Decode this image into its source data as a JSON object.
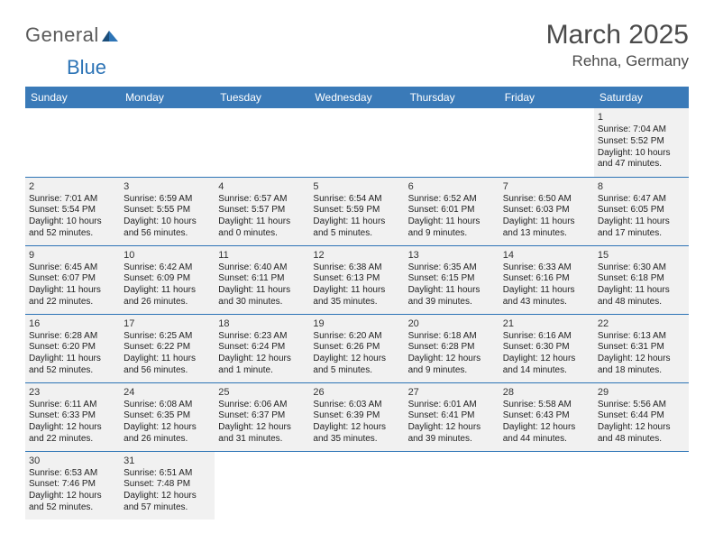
{
  "logo": {
    "general": "General",
    "blue": "Blue"
  },
  "title": "March 2025",
  "location": "Rehna, Germany",
  "colors": {
    "header_bg": "#3a7ab8",
    "header_fg": "#ffffff",
    "rule": "#2d74b6",
    "cell_bg": "#f1f1f1",
    "text": "#222222",
    "logo_gray": "#5a5a5a",
    "logo_blue": "#2d74b6"
  },
  "weekdays": [
    "Sunday",
    "Monday",
    "Tuesday",
    "Wednesday",
    "Thursday",
    "Friday",
    "Saturday"
  ],
  "grid": [
    [
      null,
      null,
      null,
      null,
      null,
      null,
      {
        "n": "1",
        "sr": "7:04 AM",
        "ss": "5:52 PM",
        "dl": "10 hours and 47 minutes."
      }
    ],
    [
      {
        "n": "2",
        "sr": "7:01 AM",
        "ss": "5:54 PM",
        "dl": "10 hours and 52 minutes."
      },
      {
        "n": "3",
        "sr": "6:59 AM",
        "ss": "5:55 PM",
        "dl": "10 hours and 56 minutes."
      },
      {
        "n": "4",
        "sr": "6:57 AM",
        "ss": "5:57 PM",
        "dl": "11 hours and 0 minutes."
      },
      {
        "n": "5",
        "sr": "6:54 AM",
        "ss": "5:59 PM",
        "dl": "11 hours and 5 minutes."
      },
      {
        "n": "6",
        "sr": "6:52 AM",
        "ss": "6:01 PM",
        "dl": "11 hours and 9 minutes."
      },
      {
        "n": "7",
        "sr": "6:50 AM",
        "ss": "6:03 PM",
        "dl": "11 hours and 13 minutes."
      },
      {
        "n": "8",
        "sr": "6:47 AM",
        "ss": "6:05 PM",
        "dl": "11 hours and 17 minutes."
      }
    ],
    [
      {
        "n": "9",
        "sr": "6:45 AM",
        "ss": "6:07 PM",
        "dl": "11 hours and 22 minutes."
      },
      {
        "n": "10",
        "sr": "6:42 AM",
        "ss": "6:09 PM",
        "dl": "11 hours and 26 minutes."
      },
      {
        "n": "11",
        "sr": "6:40 AM",
        "ss": "6:11 PM",
        "dl": "11 hours and 30 minutes."
      },
      {
        "n": "12",
        "sr": "6:38 AM",
        "ss": "6:13 PM",
        "dl": "11 hours and 35 minutes."
      },
      {
        "n": "13",
        "sr": "6:35 AM",
        "ss": "6:15 PM",
        "dl": "11 hours and 39 minutes."
      },
      {
        "n": "14",
        "sr": "6:33 AM",
        "ss": "6:16 PM",
        "dl": "11 hours and 43 minutes."
      },
      {
        "n": "15",
        "sr": "6:30 AM",
        "ss": "6:18 PM",
        "dl": "11 hours and 48 minutes."
      }
    ],
    [
      {
        "n": "16",
        "sr": "6:28 AM",
        "ss": "6:20 PM",
        "dl": "11 hours and 52 minutes."
      },
      {
        "n": "17",
        "sr": "6:25 AM",
        "ss": "6:22 PM",
        "dl": "11 hours and 56 minutes."
      },
      {
        "n": "18",
        "sr": "6:23 AM",
        "ss": "6:24 PM",
        "dl": "12 hours and 1 minute."
      },
      {
        "n": "19",
        "sr": "6:20 AM",
        "ss": "6:26 PM",
        "dl": "12 hours and 5 minutes."
      },
      {
        "n": "20",
        "sr": "6:18 AM",
        "ss": "6:28 PM",
        "dl": "12 hours and 9 minutes."
      },
      {
        "n": "21",
        "sr": "6:16 AM",
        "ss": "6:30 PM",
        "dl": "12 hours and 14 minutes."
      },
      {
        "n": "22",
        "sr": "6:13 AM",
        "ss": "6:31 PM",
        "dl": "12 hours and 18 minutes."
      }
    ],
    [
      {
        "n": "23",
        "sr": "6:11 AM",
        "ss": "6:33 PM",
        "dl": "12 hours and 22 minutes."
      },
      {
        "n": "24",
        "sr": "6:08 AM",
        "ss": "6:35 PM",
        "dl": "12 hours and 26 minutes."
      },
      {
        "n": "25",
        "sr": "6:06 AM",
        "ss": "6:37 PM",
        "dl": "12 hours and 31 minutes."
      },
      {
        "n": "26",
        "sr": "6:03 AM",
        "ss": "6:39 PM",
        "dl": "12 hours and 35 minutes."
      },
      {
        "n": "27",
        "sr": "6:01 AM",
        "ss": "6:41 PM",
        "dl": "12 hours and 39 minutes."
      },
      {
        "n": "28",
        "sr": "5:58 AM",
        "ss": "6:43 PM",
        "dl": "12 hours and 44 minutes."
      },
      {
        "n": "29",
        "sr": "5:56 AM",
        "ss": "6:44 PM",
        "dl": "12 hours and 48 minutes."
      }
    ],
    [
      {
        "n": "30",
        "sr": "6:53 AM",
        "ss": "7:46 PM",
        "dl": "12 hours and 52 minutes."
      },
      {
        "n": "31",
        "sr": "6:51 AM",
        "ss": "7:48 PM",
        "dl": "12 hours and 57 minutes."
      },
      null,
      null,
      null,
      null,
      null
    ]
  ],
  "labels": {
    "sunrise": "Sunrise:",
    "sunset": "Sunset:",
    "daylight": "Daylight:"
  }
}
